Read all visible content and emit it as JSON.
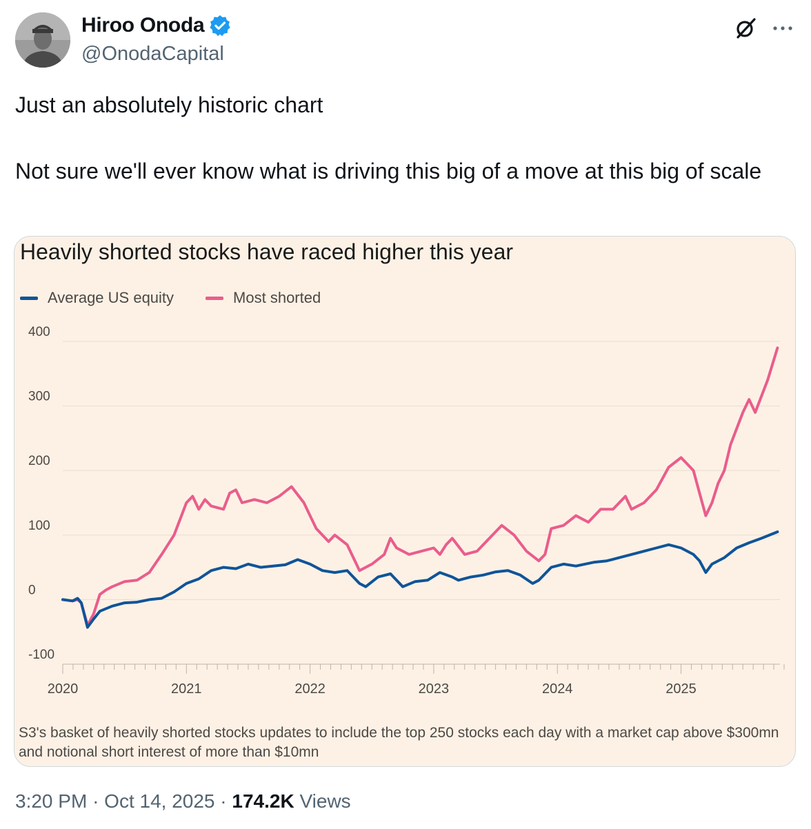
{
  "author": {
    "display_name": "Hiroo Onoda",
    "handle": "@OnodaCapital",
    "verified": true,
    "verified_color": "#1d9bf0"
  },
  "icons": {
    "avatar": "avatar-portrait",
    "verified": "verified-badge-icon",
    "grok": "grok-icon",
    "more": "more-icon"
  },
  "tweet": {
    "line1": "Just an absolutely historic chart",
    "line2": "Not sure we'll ever know what is driving this big of a move at this big of scale"
  },
  "footer": {
    "time": "3:20 PM",
    "sep1": "·",
    "date": "Oct 14, 2025",
    "sep2": "·",
    "views_count": "174.2K",
    "views_label": "Views"
  },
  "chart_data": {
    "type": "line",
    "title": "Heavily shorted stocks have raced higher this year",
    "note": "S3's basket of heavily shorted stocks updates to include the top 250 stocks each day with a market cap above $300mn and notional short interest of more than $10mn",
    "background": "#fdf1e5",
    "ylim": [
      -100,
      400
    ],
    "yticks": [
      "400",
      "300",
      "200",
      "100",
      "0",
      "-100"
    ],
    "xlim": [
      2020.0,
      2025.8
    ],
    "xticks": [
      "2020",
      "2021",
      "2022",
      "2023",
      "2024",
      "2025"
    ],
    "legend_position": "top-left",
    "grid": true,
    "series": [
      {
        "name": "Average US equity",
        "color": "#0f5499",
        "points": [
          [
            2020.0,
            0
          ],
          [
            2020.08,
            -2
          ],
          [
            2020.12,
            2
          ],
          [
            2020.15,
            -5
          ],
          [
            2020.2,
            -43
          ],
          [
            2020.25,
            -30
          ],
          [
            2020.3,
            -18
          ],
          [
            2020.4,
            -10
          ],
          [
            2020.5,
            -5
          ],
          [
            2020.6,
            -4
          ],
          [
            2020.7,
            0
          ],
          [
            2020.8,
            2
          ],
          [
            2020.9,
            12
          ],
          [
            2021.0,
            25
          ],
          [
            2021.1,
            32
          ],
          [
            2021.2,
            45
          ],
          [
            2021.3,
            50
          ],
          [
            2021.4,
            48
          ],
          [
            2021.5,
            55
          ],
          [
            2021.6,
            50
          ],
          [
            2021.7,
            52
          ],
          [
            2021.8,
            54
          ],
          [
            2021.9,
            62
          ],
          [
            2022.0,
            55
          ],
          [
            2022.1,
            45
          ],
          [
            2022.2,
            42
          ],
          [
            2022.3,
            45
          ],
          [
            2022.4,
            25
          ],
          [
            2022.45,
            20
          ],
          [
            2022.55,
            35
          ],
          [
            2022.65,
            40
          ],
          [
            2022.75,
            20
          ],
          [
            2022.85,
            28
          ],
          [
            2022.95,
            30
          ],
          [
            2023.05,
            42
          ],
          [
            2023.15,
            35
          ],
          [
            2023.2,
            30
          ],
          [
            2023.3,
            35
          ],
          [
            2023.4,
            38
          ],
          [
            2023.5,
            43
          ],
          [
            2023.6,
            45
          ],
          [
            2023.7,
            38
          ],
          [
            2023.8,
            25
          ],
          [
            2023.85,
            30
          ],
          [
            2023.95,
            50
          ],
          [
            2024.05,
            55
          ],
          [
            2024.15,
            52
          ],
          [
            2024.3,
            58
          ],
          [
            2024.4,
            60
          ],
          [
            2024.5,
            65
          ],
          [
            2024.6,
            70
          ],
          [
            2024.7,
            75
          ],
          [
            2024.8,
            80
          ],
          [
            2024.9,
            85
          ],
          [
            2025.0,
            80
          ],
          [
            2025.1,
            70
          ],
          [
            2025.15,
            60
          ],
          [
            2025.2,
            42
          ],
          [
            2025.25,
            55
          ],
          [
            2025.35,
            65
          ],
          [
            2025.45,
            80
          ],
          [
            2025.55,
            88
          ],
          [
            2025.65,
            95
          ],
          [
            2025.78,
            105
          ]
        ]
      },
      {
        "name": "Most shorted",
        "color": "#e95d8c",
        "points": [
          [
            2020.0,
            0
          ],
          [
            2020.08,
            -2
          ],
          [
            2020.12,
            0
          ],
          [
            2020.15,
            -5
          ],
          [
            2020.2,
            -40
          ],
          [
            2020.25,
            -22
          ],
          [
            2020.3,
            8
          ],
          [
            2020.35,
            15
          ],
          [
            2020.4,
            20
          ],
          [
            2020.5,
            28
          ],
          [
            2020.6,
            30
          ],
          [
            2020.7,
            42
          ],
          [
            2020.8,
            70
          ],
          [
            2020.9,
            100
          ],
          [
            2021.0,
            150
          ],
          [
            2021.05,
            160
          ],
          [
            2021.1,
            140
          ],
          [
            2021.15,
            155
          ],
          [
            2021.2,
            145
          ],
          [
            2021.3,
            140
          ],
          [
            2021.35,
            165
          ],
          [
            2021.4,
            170
          ],
          [
            2021.45,
            150
          ],
          [
            2021.55,
            155
          ],
          [
            2021.65,
            150
          ],
          [
            2021.75,
            160
          ],
          [
            2021.85,
            175
          ],
          [
            2021.95,
            150
          ],
          [
            2022.0,
            130
          ],
          [
            2022.05,
            110
          ],
          [
            2022.15,
            90
          ],
          [
            2022.2,
            100
          ],
          [
            2022.3,
            85
          ],
          [
            2022.35,
            65
          ],
          [
            2022.4,
            45
          ],
          [
            2022.5,
            55
          ],
          [
            2022.6,
            70
          ],
          [
            2022.65,
            95
          ],
          [
            2022.7,
            80
          ],
          [
            2022.75,
            75
          ],
          [
            2022.8,
            70
          ],
          [
            2022.9,
            75
          ],
          [
            2023.0,
            80
          ],
          [
            2023.05,
            70
          ],
          [
            2023.1,
            85
          ],
          [
            2023.15,
            95
          ],
          [
            2023.25,
            70
          ],
          [
            2023.35,
            75
          ],
          [
            2023.45,
            95
          ],
          [
            2023.55,
            115
          ],
          [
            2023.65,
            100
          ],
          [
            2023.75,
            75
          ],
          [
            2023.85,
            60
          ],
          [
            2023.9,
            70
          ],
          [
            2023.95,
            110
          ],
          [
            2024.05,
            115
          ],
          [
            2024.15,
            130
          ],
          [
            2024.25,
            120
          ],
          [
            2024.35,
            140
          ],
          [
            2024.45,
            140
          ],
          [
            2024.55,
            160
          ],
          [
            2024.6,
            140
          ],
          [
            2024.7,
            150
          ],
          [
            2024.8,
            170
          ],
          [
            2024.9,
            205
          ],
          [
            2025.0,
            220
          ],
          [
            2025.05,
            210
          ],
          [
            2025.1,
            200
          ],
          [
            2025.15,
            165
          ],
          [
            2025.2,
            130
          ],
          [
            2025.25,
            150
          ],
          [
            2025.3,
            180
          ],
          [
            2025.35,
            200
          ],
          [
            2025.4,
            240
          ],
          [
            2025.5,
            290
          ],
          [
            2025.55,
            310
          ],
          [
            2025.6,
            290
          ],
          [
            2025.7,
            340
          ],
          [
            2025.78,
            390
          ]
        ]
      }
    ]
  }
}
